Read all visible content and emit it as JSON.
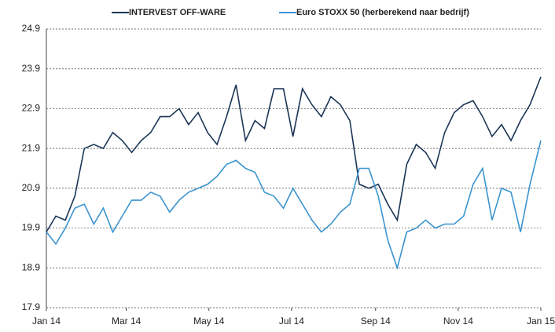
{
  "chart_data": {
    "type": "line",
    "series": [
      {
        "name": "INTERVEST OFF-WARE",
        "color": "#1b3556",
        "values": [
          19.8,
          20.2,
          20.1,
          20.7,
          21.9,
          22.0,
          21.9,
          22.3,
          22.1,
          21.8,
          22.1,
          22.3,
          22.7,
          22.7,
          22.9,
          22.5,
          22.8,
          22.3,
          22.0,
          22.7,
          23.5,
          22.1,
          22.6,
          22.4,
          23.4,
          23.4,
          22.2,
          23.4,
          23.0,
          22.7,
          23.2,
          23.0,
          22.6,
          21.0,
          20.9,
          21.0,
          20.5,
          20.1,
          21.5,
          22.0,
          21.8,
          21.4,
          22.3,
          22.8,
          23.0,
          23.1,
          22.7,
          22.2,
          22.5,
          22.1,
          22.6,
          23.0,
          23.7
        ]
      },
      {
        "name": "Euro STOXX 50 (herberekend naar bedrijf)",
        "color": "#3b94cf",
        "values": [
          19.8,
          19.5,
          19.9,
          20.4,
          20.5,
          20.0,
          20.4,
          19.8,
          20.2,
          20.6,
          20.6,
          20.8,
          20.7,
          20.3,
          20.6,
          20.8,
          20.9,
          21.0,
          21.2,
          21.5,
          21.6,
          21.4,
          21.3,
          20.8,
          20.7,
          20.4,
          20.9,
          20.5,
          20.1,
          19.8,
          20.0,
          20.3,
          20.5,
          21.4,
          21.4,
          20.7,
          19.6,
          18.9,
          19.8,
          19.9,
          20.1,
          19.9,
          20.0,
          20.0,
          20.2,
          21.0,
          21.4,
          20.1,
          20.9,
          20.8,
          19.8,
          21.0,
          22.1
        ]
      }
    ],
    "x": [
      0,
      7,
      14,
      21,
      28,
      35,
      42,
      49,
      56,
      63,
      70,
      77,
      84,
      91,
      98,
      105,
      112,
      119,
      126,
      133,
      140,
      147,
      154,
      161,
      168,
      175,
      182,
      189,
      196,
      203,
      210,
      217,
      224,
      231,
      238,
      245,
      252,
      259,
      266,
      273,
      280,
      287,
      294,
      301,
      308,
      315,
      322,
      329,
      336,
      343,
      350,
      357,
      365
    ],
    "xlim": [
      0,
      365
    ],
    "xticks": [
      {
        "value": 0,
        "label": "Jan 14"
      },
      {
        "value": 59,
        "label": "Mar 14"
      },
      {
        "value": 120,
        "label": "May 14"
      },
      {
        "value": 181,
        "label": "Jul 14"
      },
      {
        "value": 243,
        "label": "Sep 14"
      },
      {
        "value": 304,
        "label": "Nov 14"
      },
      {
        "value": 365,
        "label": "Jan 15"
      }
    ],
    "ylim": [
      17.9,
      24.9
    ],
    "yticks": [
      17.9,
      18.9,
      19.9,
      20.9,
      21.9,
      22.9,
      23.9,
      24.9
    ],
    "grid": true,
    "legend": "top"
  }
}
